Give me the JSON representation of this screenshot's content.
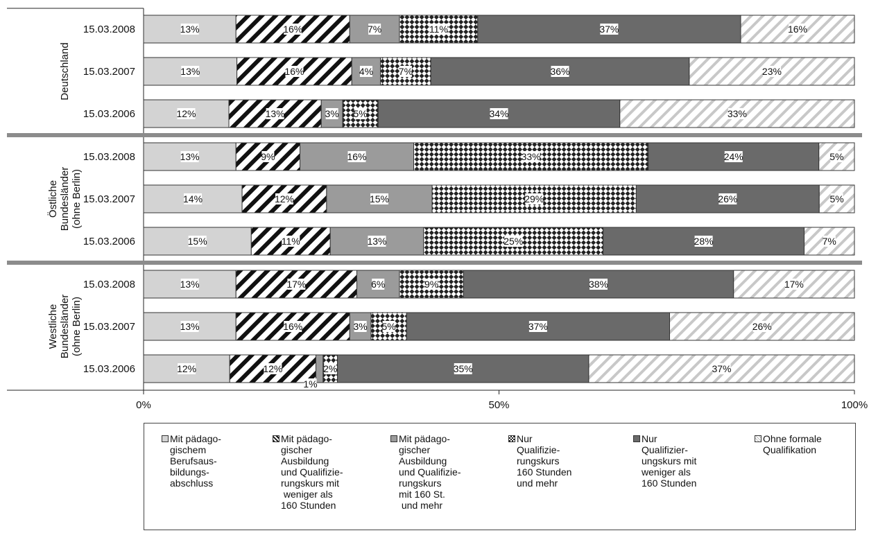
{
  "chart_data": {
    "type": "bar",
    "orientation": "horizontal",
    "stacked": true,
    "percent": true,
    "groups": [
      {
        "label": "Deutschland",
        "rows": [
          {
            "date": "15.03.2008",
            "values": [
              13,
              16,
              7,
              11,
              37,
              16
            ]
          },
          {
            "date": "15.03.2007",
            "values": [
              13,
              16,
              4,
              7,
              36,
              23
            ]
          },
          {
            "date": "15.03.2006",
            "values": [
              12,
              13,
              3,
              5,
              34,
              33
            ]
          }
        ]
      },
      {
        "label": "Östliche\nBundesländer\n(ohne Berlin)",
        "rows": [
          {
            "date": "15.03.2008",
            "values": [
              13,
              9,
              16,
              33,
              24,
              5
            ]
          },
          {
            "date": "15.03.2007",
            "values": [
              14,
              12,
              15,
              29,
              26,
              5
            ]
          },
          {
            "date": "15.03.2006",
            "values": [
              15,
              11,
              13,
              25,
              28,
              7
            ]
          }
        ]
      },
      {
        "label": "Westliche\nBundesländer\n(ohne Berlin)",
        "rows": [
          {
            "date": "15.03.2008",
            "values": [
              13,
              17,
              6,
              9,
              38,
              17
            ]
          },
          {
            "date": "15.03.2007",
            "values": [
              13,
              16,
              3,
              5,
              37,
              26
            ]
          },
          {
            "date": "15.03.2006",
            "values": [
              12,
              12,
              1,
              2,
              35,
              37
            ]
          }
        ]
      }
    ],
    "series": [
      {
        "name": "Mit pädago-\ngischem\nBerufsaus-\nbildungs-\nabschluss",
        "fill": "#d3d3d3",
        "pattern": "solid"
      },
      {
        "name": "Mit pädago-\ngischer\nAusbildung\nund Qualifizie-\nrungskurs mit\n weniger als\n160 Stunden",
        "fill": "#ffffff",
        "pattern": "diagonal-dark"
      },
      {
        "name": "Mit pädago-\ngischer\nAusbildung\nund Qualifizie-\nrungskurs\nmit 160 St.\n und mehr",
        "fill": "#9b9b9b",
        "pattern": "solid"
      },
      {
        "name": "Nur\nQualifizie-\nrungskurs\n160 Stunden\nund mehr",
        "fill": "#ffffff",
        "pattern": "checker"
      },
      {
        "name": "Nur\nQualifizier-\nungskurs mit\nweniger als\n160 Stunden",
        "fill": "#6a6a6a",
        "pattern": "solid"
      },
      {
        "name": "Ohne formale\nQualifikation",
        "fill": "#ffffff",
        "pattern": "diagonal-light"
      }
    ],
    "x_ticks": [
      "0%",
      "50%",
      "100%"
    ],
    "xlim": [
      0,
      100
    ],
    "legend_position": "bottom",
    "group_separator_color": "#8c8c8c"
  }
}
